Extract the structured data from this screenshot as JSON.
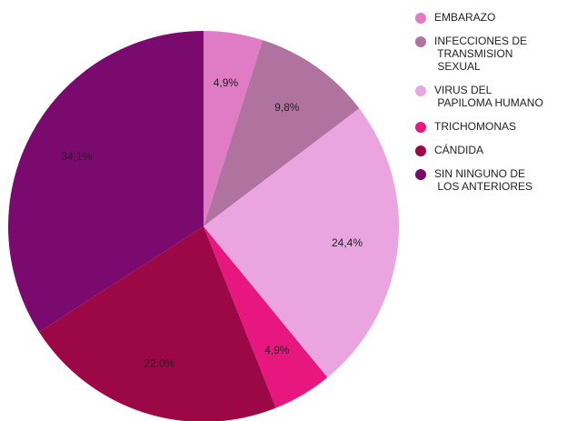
{
  "chart_data": {
    "type": "pie",
    "categories": [
      "EMBARAZO",
      "INFECCIONES DE TRANSMISION SEXUAL",
      "VIRUS DEL PAPILOMA HUMANO",
      "TRICHOMONAS",
      "CÁNDIDA",
      "SIN NINGUNO DE LOS ANTERIORES"
    ],
    "values": [
      4.9,
      9.8,
      24.4,
      4.9,
      22.0,
      34.1
    ],
    "value_labels": [
      "4,9%",
      "9,8%",
      "24,4%",
      "4,9%",
      "22,0%",
      "34,1%"
    ],
    "colors": [
      "#e07cc5",
      "#b0739f",
      "#eaa5e0",
      "#e8177f",
      "#9c0845",
      "#7b0a6e"
    ],
    "legend": "right"
  }
}
